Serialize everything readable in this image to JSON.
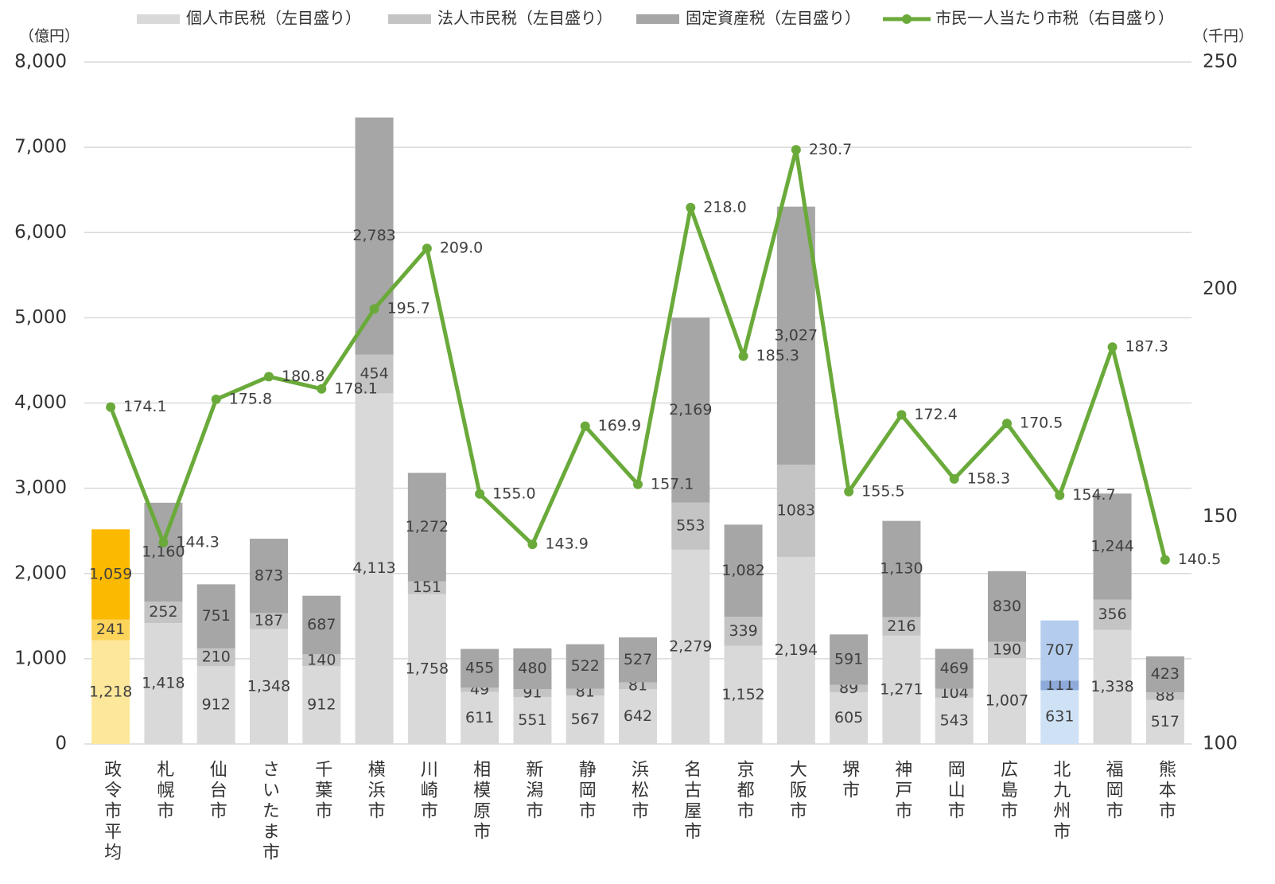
{
  "chart_data": {
    "type": "bar",
    "stacked": true,
    "y_axis_label": "（億円）",
    "y2_axis_label": "（千円）",
    "categories": [
      "政令市平均",
      "札幌市",
      "仙台市",
      "さいたま市",
      "千葉市",
      "横浜市",
      "川崎市",
      "相模原市",
      "新潟市",
      "静岡市",
      "浜松市",
      "名古屋市",
      "京都市",
      "大阪市",
      "堺市",
      "神戸市",
      "岡山市",
      "広島市",
      "北九州市",
      "福岡市",
      "熊本市"
    ],
    "series": [
      {
        "name": "個人市民税（左目盛り）",
        "type": "bar",
        "color": "#d9d9d9",
        "colors": [
          "#fde79a",
          "#d9d9d9",
          "#d9d9d9",
          "#d9d9d9",
          "#d9d9d9",
          "#d9d9d9",
          "#d9d9d9",
          "#d9d9d9",
          "#d9d9d9",
          "#d9d9d9",
          "#d9d9d9",
          "#d9d9d9",
          "#d9d9d9",
          "#d9d9d9",
          "#d9d9d9",
          "#d9d9d9",
          "#d9d9d9",
          "#d9d9d9",
          "#cfe2f5",
          "#d9d9d9",
          "#d9d9d9"
        ],
        "values": [
          1218,
          1418,
          912,
          1348,
          912,
          4113,
          1758,
          611,
          551,
          567,
          642,
          2279,
          1152,
          2194,
          605,
          1271,
          543,
          1007,
          631,
          1338,
          517
        ],
        "value_labels": [
          "1,218",
          "1,418",
          "912",
          "1,348",
          "912",
          "4,113",
          "1,758",
          "611",
          "551",
          "567",
          "642",
          "2,279",
          "1,152",
          "2,194",
          "605",
          "1,271",
          "543",
          "1,007",
          "631",
          "1,338",
          "517"
        ]
      },
      {
        "name": "法人市民税（左目盛り）",
        "type": "bar",
        "color": "#c4c4c4",
        "colors": [
          "#fdd45a",
          "#c4c4c4",
          "#c4c4c4",
          "#c4c4c4",
          "#c4c4c4",
          "#c4c4c4",
          "#c4c4c4",
          "#c4c4c4",
          "#c4c4c4",
          "#c4c4c4",
          "#c4c4c4",
          "#c4c4c4",
          "#c4c4c4",
          "#c4c4c4",
          "#c4c4c4",
          "#c4c4c4",
          "#c4c4c4",
          "#c4c4c4",
          "#8eaadb",
          "#c4c4c4",
          "#c4c4c4"
        ],
        "values": [
          241,
          252,
          210,
          187,
          140,
          454,
          151,
          49,
          91,
          81,
          81,
          553,
          339,
          1083,
          89,
          216,
          104,
          190,
          111,
          356,
          88
        ]
      },
      {
        "name": "固定資産税（左目盛り）",
        "type": "bar",
        "color": "#a6a6a6",
        "colors": [
          "#fbb900",
          "#a6a6a6",
          "#a6a6a6",
          "#a6a6a6",
          "#a6a6a6",
          "#a6a6a6",
          "#a6a6a6",
          "#a6a6a6",
          "#a6a6a6",
          "#a6a6a6",
          "#a6a6a6",
          "#a6a6a6",
          "#a6a6a6",
          "#a6a6a6",
          "#a6a6a6",
          "#a6a6a6",
          "#a6a6a6",
          "#a6a6a6",
          "#b4cdee",
          "#a6a6a6",
          "#a6a6a6"
        ],
        "values": [
          1059,
          1160,
          751,
          873,
          687,
          2783,
          1272,
          455,
          480,
          522,
          527,
          2169,
          1082,
          3027,
          591,
          1130,
          469,
          830,
          707,
          1244,
          423
        ],
        "value_labels": [
          "1,059",
          "1,160",
          "751",
          "873",
          "687",
          "2,783",
          "1,272",
          "455",
          "480",
          "522",
          "527",
          "2,169",
          "1,082",
          "3,027",
          "591",
          "1,130",
          "469",
          "830",
          "707",
          "1,244",
          "423"
        ]
      },
      {
        "name": "市民一人当たり市税（右目盛り）",
        "type": "line",
        "axis": "y2",
        "color": "#6aaa3a",
        "values": [
          174.1,
          144.3,
          175.8,
          180.8,
          178.1,
          195.7,
          209.0,
          155.0,
          143.9,
          169.9,
          157.1,
          218.0,
          185.3,
          230.7,
          155.5,
          172.4,
          158.3,
          170.5,
          154.7,
          187.3,
          140.5
        ],
        "value_labels": [
          "174.1",
          "144.3",
          "175.8",
          "180.8",
          "178.1",
          "195.7",
          "209.0",
          "155.0",
          "143.9",
          "169.9",
          "157.1",
          "218.0",
          "185.3",
          "230.7",
          "155.5",
          "172.4",
          "158.3",
          "170.5",
          "154.7",
          "187.3",
          "140.5"
        ]
      }
    ],
    "ylim": [
      0,
      8000
    ],
    "yticks": [
      0,
      {
        "value": 1000,
        "label": "1,000"
      },
      {
        "value": 2000,
        "label": "2,000"
      },
      {
        "value": 3000,
        "label": "3,000"
      },
      {
        "value": 4000,
        "label": "4,000"
      },
      {
        "value": 5000,
        "label": "5,000"
      },
      {
        "value": 6000,
        "label": "6,000"
      },
      {
        "value": 7000,
        "label": "7,000"
      },
      {
        "value": 8000,
        "label": "8,000"
      }
    ],
    "y2lim": [
      100,
      250
    ],
    "y2ticks": [
      100,
      150,
      200,
      250
    ],
    "grid": true,
    "legend": "top"
  }
}
